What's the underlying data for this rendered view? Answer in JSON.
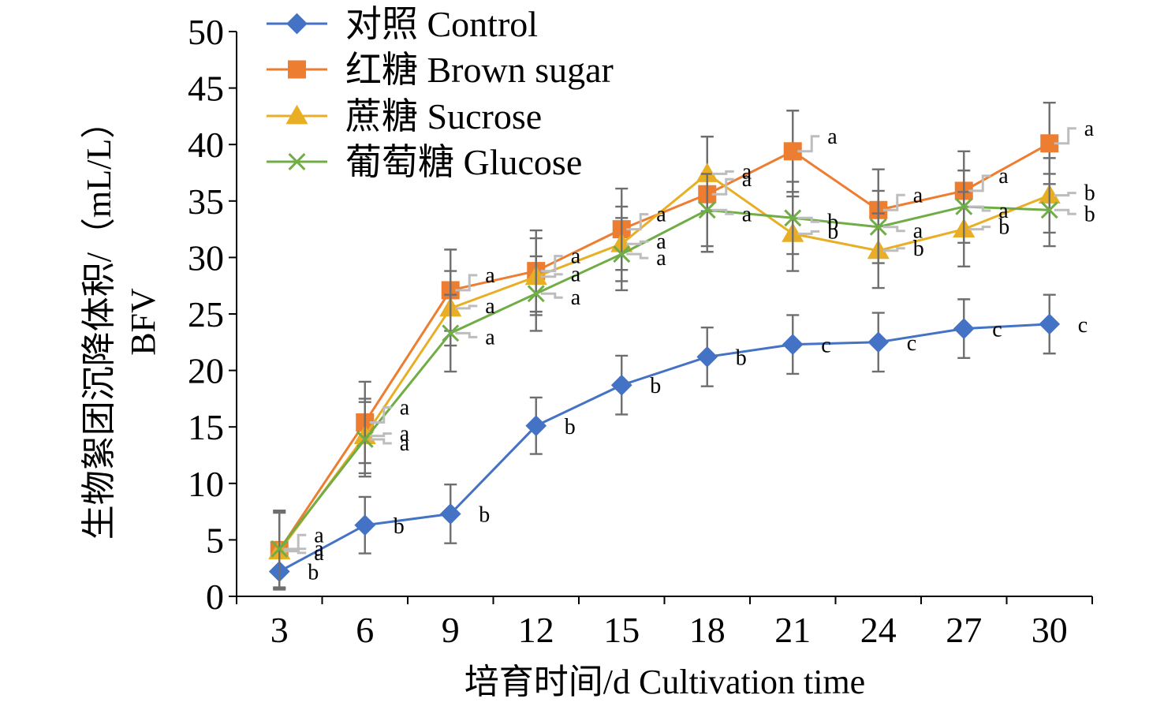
{
  "chart_data": {
    "type": "line",
    "xlabel": "培育时间/d Cultivation time",
    "ylabel_lines": [
      "生物絮团沉降体积/（mL/L）",
      "BFV"
    ],
    "x": [
      3,
      6,
      9,
      12,
      15,
      18,
      21,
      24,
      27,
      30
    ],
    "ylim": [
      0,
      50
    ],
    "yticks": [
      0,
      5,
      10,
      15,
      20,
      25,
      30,
      35,
      40,
      45,
      50
    ],
    "grid": false,
    "legend_position": "top-left",
    "series": [
      {
        "name": "对照 Control",
        "color": "#4472C4",
        "marker": "diamond",
        "values": [
          2.2,
          6.3,
          7.3,
          15.1,
          18.7,
          21.2,
          22.3,
          22.5,
          23.7,
          24.1
        ],
        "errors": [
          1.5,
          2.5,
          2.6,
          2.5,
          2.6,
          2.6,
          2.6,
          2.6,
          2.6,
          2.6
        ],
        "labels": [
          "b",
          "b",
          "b",
          "b",
          "b",
          "b",
          "c",
          "c",
          "c",
          "c"
        ]
      },
      {
        "name": "红糖 Brown sugar",
        "color": "#ED7D31",
        "marker": "square",
        "values": [
          4.1,
          15.4,
          27.1,
          28.8,
          32.5,
          35.6,
          39.4,
          34.2,
          35.9,
          40.1
        ],
        "errors": [
          3.4,
          3.6,
          3.6,
          3.6,
          3.6,
          5.1,
          3.6,
          3.6,
          3.5,
          3.6
        ],
        "labels": [
          "a",
          "a",
          "a",
          "a",
          "a",
          "a",
          "a",
          "a",
          "a",
          "a"
        ]
      },
      {
        "name": "蔗糖 Sucrose",
        "color": "#E8AE25",
        "marker": "triangle",
        "values": [
          4.0,
          14.2,
          25.5,
          28.3,
          31.2,
          37.4,
          32.1,
          30.6,
          32.5,
          35.5
        ],
        "errors": [
          3.4,
          3.3,
          3.3,
          3.4,
          3.3,
          3.3,
          3.3,
          3.3,
          3.3,
          3.3
        ],
        "labels": [
          "a",
          "a",
          "a",
          "a",
          "a",
          "a",
          "b",
          "b",
          "b",
          "b"
        ]
      },
      {
        "name": "葡萄糖 Glucose",
        "color": "#70AD47",
        "marker": "x",
        "values": [
          4.2,
          13.9,
          23.3,
          26.8,
          30.3,
          34.2,
          33.5,
          32.7,
          34.5,
          34.2
        ],
        "errors": [
          3.4,
          3.3,
          3.4,
          3.3,
          3.2,
          3.2,
          3.2,
          3.2,
          3.2,
          3.2
        ],
        "labels": [
          "a",
          "a",
          "a",
          "a",
          "a",
          "a",
          "b",
          "a",
          "a",
          "b"
        ]
      }
    ]
  }
}
